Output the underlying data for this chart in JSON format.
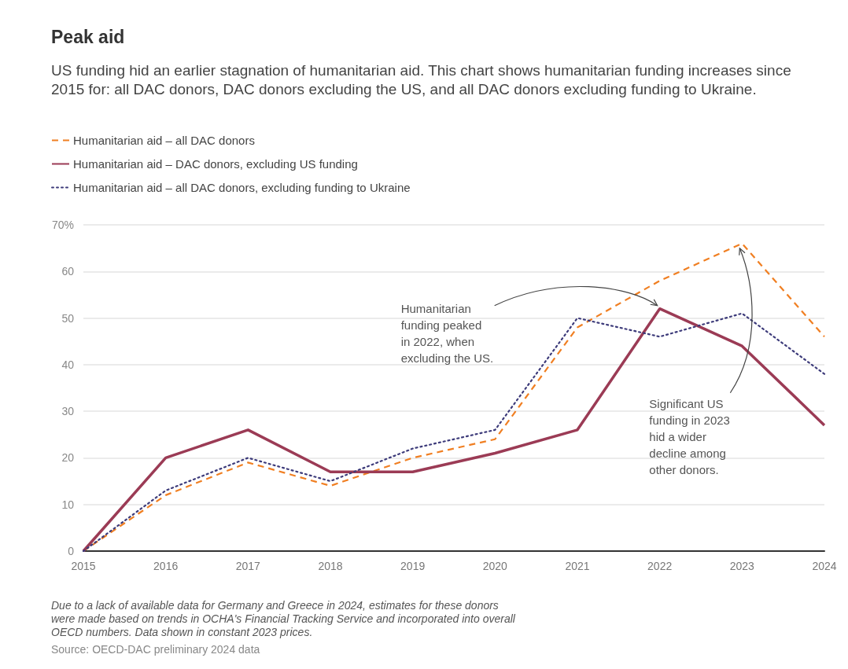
{
  "chart_data": {
    "type": "line",
    "title": "Peak aid",
    "subtitle": "US funding hid an earlier stagnation of humanitarian aid. This chart shows humanitarian funding increases since 2015 for: all DAC donors, DAC donors excluding the US, and all DAC donors excluding funding to Ukraine.",
    "categories": [
      "2015",
      "2016",
      "2017",
      "2018",
      "2019",
      "2020",
      "2021",
      "2022",
      "2023",
      "2024"
    ],
    "series": [
      {
        "name": "Humanitarian aid – all DAC donors",
        "color": "#f07f22",
        "line_style": "dashed",
        "values": [
          0,
          12,
          19,
          14,
          20,
          24,
          48,
          58,
          66,
          46
        ]
      },
      {
        "name": "Humanitarian aid – DAC donors, excluding US funding",
        "color": "#9b3b55",
        "line_style": "solid",
        "values": [
          0,
          20,
          26,
          17,
          17,
          21,
          26,
          52,
          44,
          27
        ]
      },
      {
        "name": "Humanitarian aid – all DAC donors, excluding funding to Ukraine",
        "color": "#3d3b7a",
        "line_style": "dotted",
        "values": [
          0,
          13,
          20,
          15,
          22,
          26,
          50,
          46,
          51,
          38
        ]
      }
    ],
    "ylim": [
      0,
      70
    ],
    "yticks": [
      0,
      10,
      20,
      30,
      40,
      50,
      60,
      {
        "value": 70,
        "label": "70%"
      }
    ],
    "grid": "y",
    "legend": "top left",
    "marker": "none",
    "annotations": [
      {
        "text": "Humanitarian\nfunding peaked\nin 2022, when\nexcluding the US.",
        "x": "2022",
        "y": 52
      },
      {
        "text": "Significant US\nfunding in 2023\nhid a wider\ndecline among\nother donors.",
        "x": "2023",
        "y": 66
      },
      "Due to a lack of available data for Germany and Greece in 2024, estimates for these donors were made based on trends in OCHA's Financial Tracking Service and incorporated into overall OECD numbers. Data shown in constant 2023 prices.",
      "Source: OECD-DAC preliminary 2024 data"
    ]
  }
}
